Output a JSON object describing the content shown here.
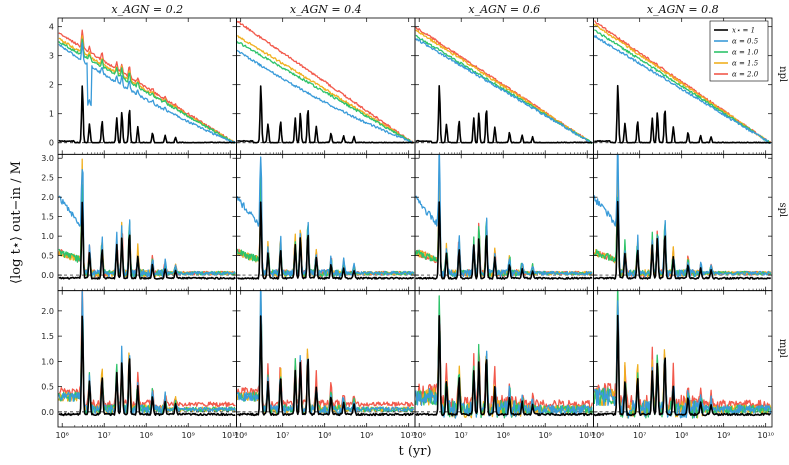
{
  "chart_data": {
    "type": "line",
    "columns": [
      {
        "label": "x_AGN = 0.2",
        "x_agn": 0.2
      },
      {
        "label": "x_AGN = 0.4",
        "x_agn": 0.4
      },
      {
        "label": "x_AGN = 0.6",
        "x_agn": 0.6
      },
      {
        "label": "x_AGN = 0.8",
        "x_agn": 0.8
      }
    ],
    "rows": [
      {
        "label": "npl",
        "ylim": [
          -0.4,
          4.3
        ],
        "yticks": [
          0,
          1,
          2,
          3,
          4
        ],
        "ytick_labels": [
          "0",
          "1",
          "2",
          "3",
          "4"
        ]
      },
      {
        "label": "spl",
        "ylim": [
          -0.4,
          3.1
        ],
        "yticks": [
          0.0,
          0.5,
          1.0,
          1.5,
          2.0,
          2.5,
          3.0
        ],
        "ytick_labels": [
          "0.0",
          "0.5",
          "1.0",
          "1.5",
          "2.0",
          "2.5",
          "3.0"
        ]
      },
      {
        "label": "mpl",
        "ylim": [
          -0.3,
          2.4
        ],
        "yticks": [
          0.0,
          0.5,
          1.0,
          1.5,
          2.0
        ],
        "ytick_labels": [
          "0.0",
          "0.5",
          "1.0",
          "1.5",
          "2.0"
        ]
      }
    ],
    "xscale": "log",
    "xlim_log10": [
      5.9,
      10.15
    ],
    "xticks_log10": [
      6,
      7,
      8,
      9,
      10
    ],
    "xtick_labels": [
      "10⁶",
      "10⁷",
      "10⁸",
      "10⁹",
      "10¹⁰"
    ],
    "xlabel": "t (yr)",
    "ylabel": "⟨log t⋆⟩ out−in / M",
    "legend_position": "top-right",
    "series": [
      {
        "name": "x⋆ = 1",
        "color": "#000000"
      },
      {
        "name": "α = 0.5",
        "color": "#3a9bd9"
      },
      {
        "name": "α = 1.0",
        "color": "#2ec36a"
      },
      {
        "name": "α = 1.5",
        "color": "#f0b020"
      },
      {
        "name": "α = 2.0",
        "color": "#f2594b"
      }
    ],
    "peaks_log10t": [
      6.48,
      6.65,
      6.95,
      7.3,
      7.42,
      7.6,
      7.8,
      8.15,
      8.45,
      8.7
    ],
    "npl_start_values": {
      "x_AGN=0.2": [
        3.4,
        3.5,
        3.6,
        3.8
      ],
      "x_AGN=0.4": [
        3.2,
        3.5,
        3.7,
        4.2
      ],
      "x_AGN=0.6": [
        3.6,
        3.7,
        3.9,
        4.0
      ],
      "x_AGN=0.8": [
        3.7,
        3.9,
        4.1,
        4.2
      ]
    }
  }
}
